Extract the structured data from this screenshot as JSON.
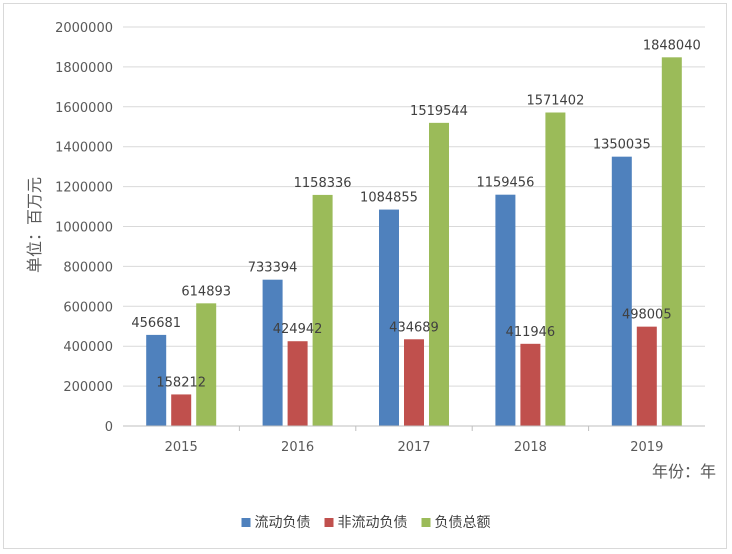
{
  "chart_data": {
    "type": "bar",
    "title": "",
    "ylabel": "单位：百万元",
    "xlabel": "年份：年",
    "ylim": [
      0,
      2000000
    ],
    "ytick_step": 200000,
    "yticks": [
      "0",
      "200000",
      "400000",
      "600000",
      "800000",
      "1000000",
      "1200000",
      "1400000",
      "1600000",
      "1800000",
      "2000000"
    ],
    "categories": [
      "2015",
      "2016",
      "2017",
      "2018",
      "2019"
    ],
    "series": [
      {
        "name": "流动负债",
        "color": "#4f81bd",
        "values": [
          456681,
          733394,
          1084855,
          1159456,
          1350035
        ],
        "labels": [
          "456681",
          "733394",
          "1084855",
          "1159456",
          "1350035"
        ]
      },
      {
        "name": "非流动负债",
        "color": "#c0504d",
        "values": [
          158212,
          424942,
          434689,
          411946,
          498005
        ],
        "labels": [
          "158212",
          "424942",
          "434689",
          "411946",
          "498005"
        ]
      },
      {
        "name": "负债总额",
        "color": "#9bbb59",
        "values": [
          614893,
          1158336,
          1519544,
          1571402,
          1848040
        ],
        "labels": [
          "614893",
          "1158336",
          "1519544",
          "1571402",
          "1848040"
        ]
      }
    ],
    "legend_position": "bottom",
    "grid": true
  }
}
